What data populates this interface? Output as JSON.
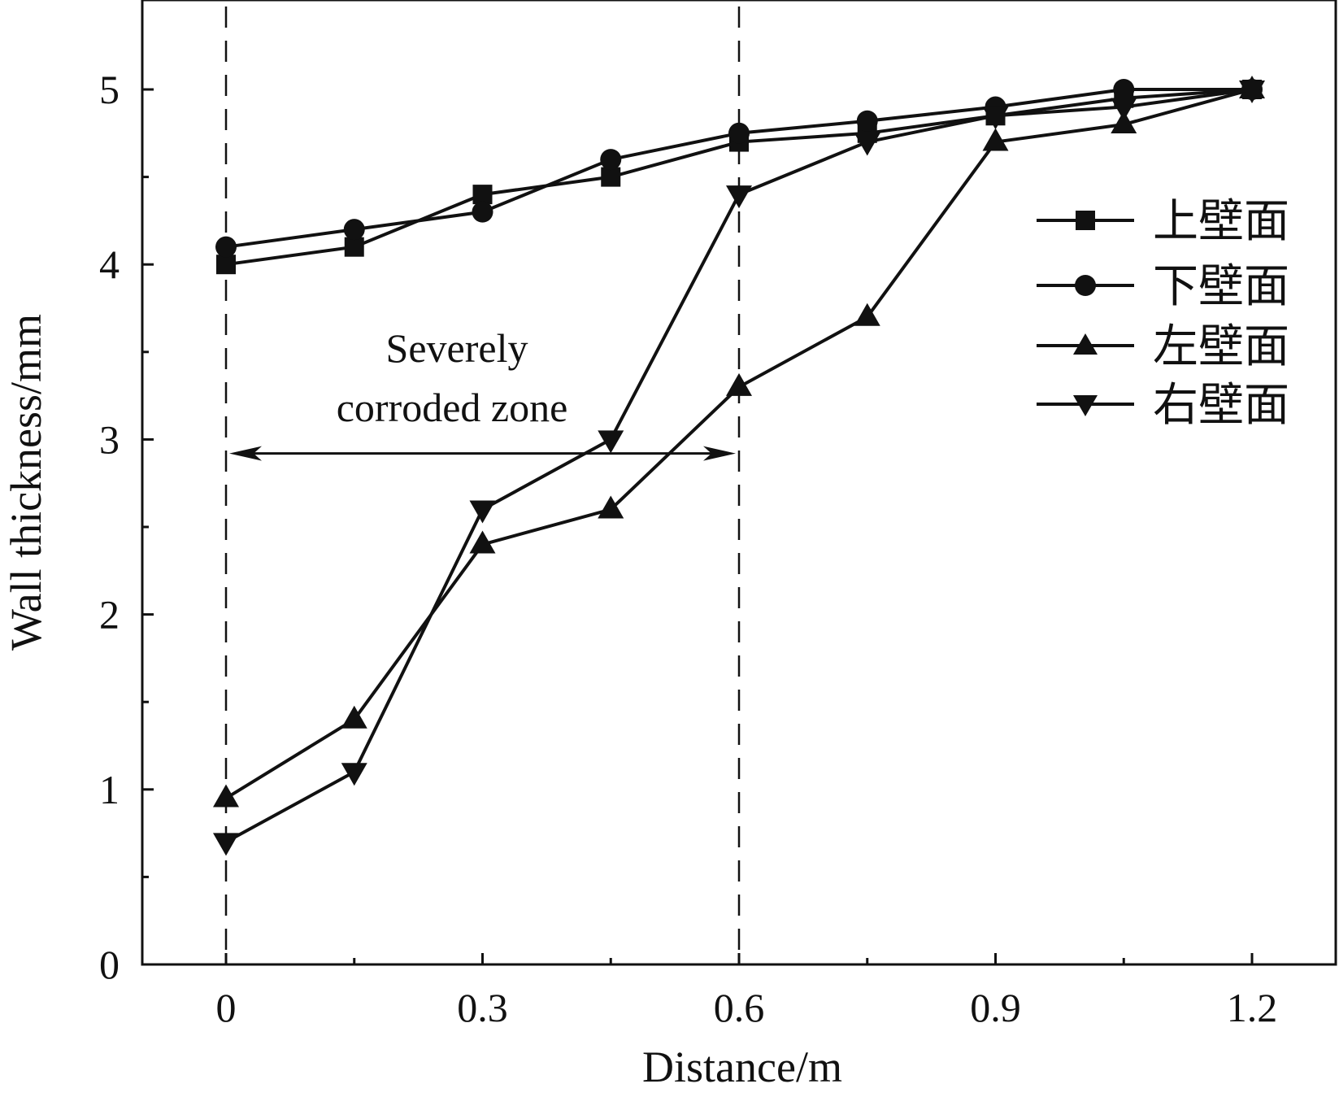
{
  "chart_data": {
    "type": "line",
    "title": "",
    "xlabel": "Distance/m",
    "ylabel": "Wall thickness/mm",
    "xlim": [
      -0.15,
      1.35
    ],
    "ylim": [
      0,
      5.5
    ],
    "xticks": [
      0,
      0.3,
      0.6,
      0.9,
      1.2
    ],
    "xtick_labels": [
      "0",
      "0.3",
      "0.6",
      "0.9",
      "1.2"
    ],
    "yticks": [
      0,
      1,
      2,
      3,
      4,
      5
    ],
    "ytick_labels": [
      "0",
      "1",
      "2",
      "3",
      "4",
      "5"
    ],
    "grid": false,
    "legend_position": "right",
    "x": [
      0,
      0.15,
      0.3,
      0.45,
      0.6,
      0.75,
      0.9,
      1.05,
      1.2
    ],
    "series": [
      {
        "name": "上壁面",
        "marker": "square",
        "values": [
          4.0,
          4.1,
          4.4,
          4.5,
          4.7,
          4.75,
          4.85,
          4.95,
          5.0
        ]
      },
      {
        "name": "下壁面",
        "marker": "circle",
        "values": [
          4.1,
          4.2,
          4.3,
          4.6,
          4.75,
          4.82,
          4.9,
          5.0,
          5.0
        ]
      },
      {
        "name": "左壁面",
        "marker": "triangle-up",
        "values": [
          0.95,
          1.4,
          2.4,
          2.6,
          3.3,
          3.7,
          4.7,
          4.8,
          5.0
        ]
      },
      {
        "name": "右壁面",
        "marker": "triangle-down",
        "values": [
          0.7,
          1.1,
          2.6,
          3.0,
          4.4,
          4.7,
          4.85,
          4.9,
          5.0
        ]
      }
    ],
    "vertical_reference_lines": [
      0,
      0.6
    ],
    "annotation": {
      "line1": "Severely",
      "line2": "corroded zone",
      "span": [
        0,
        0.6
      ],
      "arrow_y": 2.92
    }
  }
}
